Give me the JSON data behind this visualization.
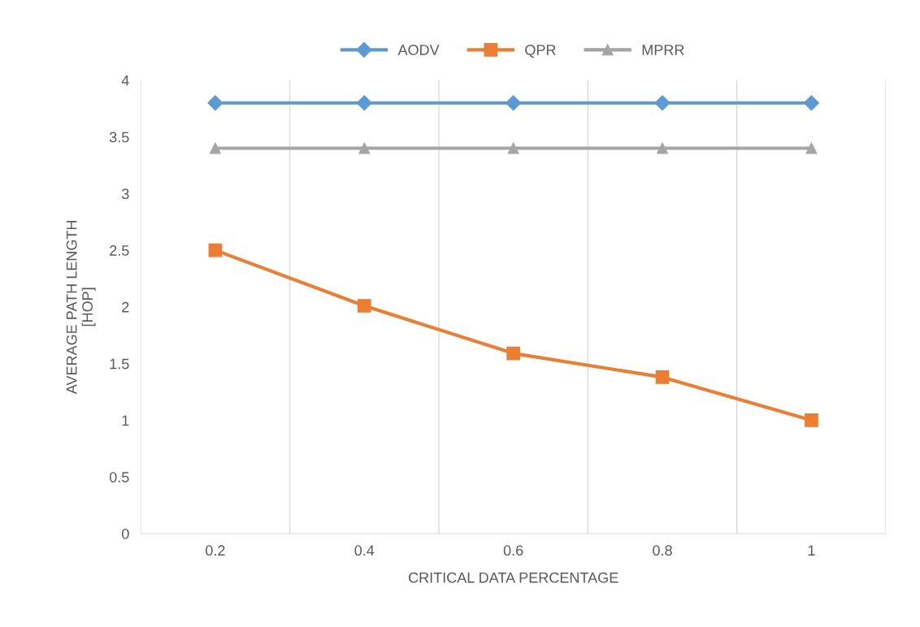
{
  "chart_data": {
    "type": "line",
    "xlabel": "CRITICAL DATA PERCENTAGE",
    "ylabel": "AVERAGE PATH LENGTH\n[HOP]",
    "categories": [
      "0.2",
      "0.4",
      "0.6",
      "0.8",
      "1"
    ],
    "series": [
      {
        "name": "AODV",
        "color": "#5b9bd5",
        "marker": "diamond",
        "values": [
          3.8,
          3.8,
          3.8,
          3.8,
          3.8
        ]
      },
      {
        "name": "QPR",
        "color": "#ed7d31",
        "marker": "square",
        "values": [
          2.5,
          2.01,
          1.59,
          1.38,
          1.0
        ]
      },
      {
        "name": "MPRR",
        "color": "#a5a5a5",
        "marker": "triangle",
        "values": [
          3.4,
          3.4,
          3.4,
          3.4,
          3.4
        ]
      }
    ],
    "ylim": [
      0,
      4
    ],
    "yticks": [
      0,
      0.5,
      1,
      1.5,
      2,
      2.5,
      3,
      3.5,
      4
    ],
    "grid": "x",
    "legend": "top",
    "line_style": "solid"
  }
}
